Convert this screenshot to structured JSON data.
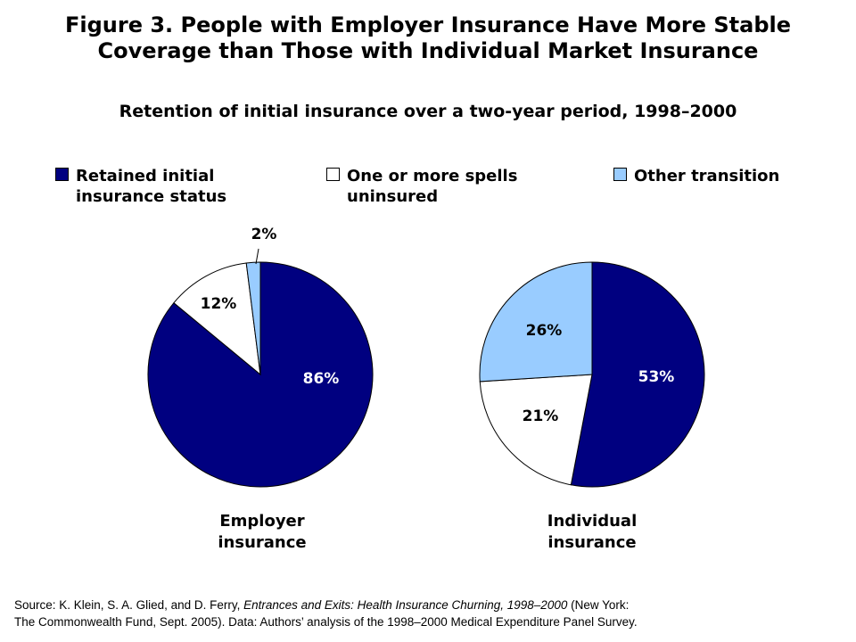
{
  "title_line1": "Figure 3. People with Employer Insurance Have More Stable",
  "title_line2": "Coverage than Those with Individual Market Insurance",
  "subtitle": "Retention of initial insurance over a two-year period, 1998–2000",
  "legend": [
    {
      "label": "Retained initial\ninsurance status",
      "color": "#000080"
    },
    {
      "label": "One or more spells\nuninsured",
      "color": "#ffffff"
    },
    {
      "label": "Other transition",
      "color": "#99ccff"
    }
  ],
  "chart_data": [
    {
      "type": "pie",
      "title": "Employer\ninsurance",
      "categories": [
        "Retained initial insurance status",
        "One or more spells uninsured",
        "Other transition"
      ],
      "values": [
        86,
        12,
        2
      ],
      "labels": [
        "86%",
        "12%",
        "2%"
      ],
      "colors": [
        "#000080",
        "#ffffff",
        "#99ccff"
      ]
    },
    {
      "type": "pie",
      "title": "Individual\ninsurance",
      "categories": [
        "Retained initial insurance status",
        "One or more spells uninsured",
        "Other transition"
      ],
      "values": [
        53,
        21,
        26
      ],
      "labels": [
        "53%",
        "21%",
        "26%"
      ],
      "colors": [
        "#000080",
        "#ffffff",
        "#99ccff"
      ]
    }
  ],
  "source": {
    "prefix": "Source: K. Klein, S. A. Glied, and D. Ferry, ",
    "italic": "Entrances and Exits: Health Insurance Churning, 1998–2000",
    "suffix": " (New York:",
    "line2": "The Commonwealth Fund, Sept. 2005). Data: Authors’ analysis of the 1998–2000 Medical Expenditure Panel Survey."
  }
}
